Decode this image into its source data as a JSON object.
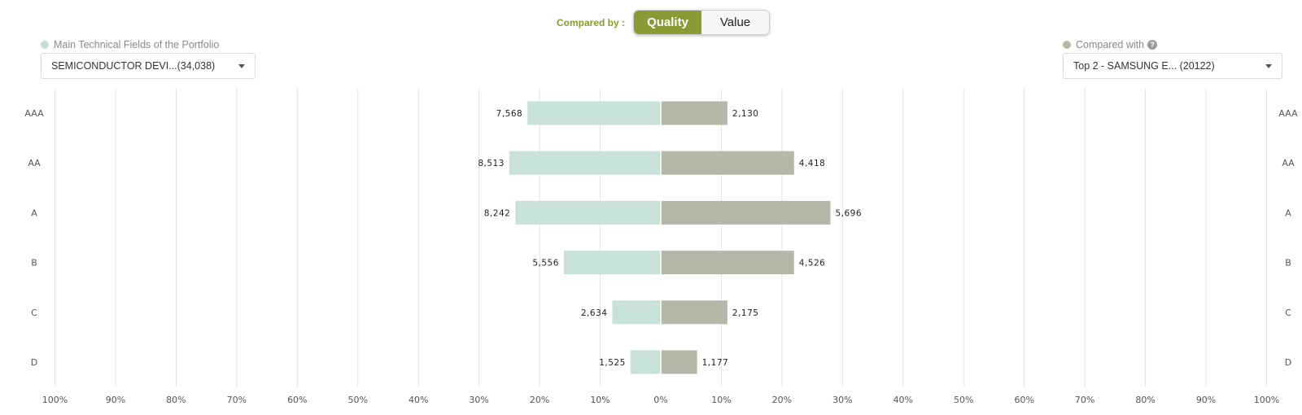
{
  "header": {
    "compared_by_label": "Compared by :",
    "toggle": [
      {
        "label": "Quality",
        "active": true
      },
      {
        "label": "Value",
        "active": false
      }
    ]
  },
  "left_panel": {
    "label": "Main Technical Fields of the Portfolio",
    "dot_color": "#c5e0d6",
    "select_value": "SEMICONDUCTOR DEVI...(34,038)"
  },
  "right_panel": {
    "label": "Compared with",
    "dot_color": "#b5b8a8",
    "select_value": "Top 2 - SAMSUNG E... (20122)"
  },
  "colors": {
    "left_bar": "#c8e2d7",
    "right_bar": "#b5b8a8",
    "accent": "#8a9a35",
    "grid": "#e3e3e3"
  },
  "chart_data": {
    "type": "bar",
    "orientation": "horizontal-diverging",
    "categories": [
      "AAA",
      "AA",
      "A",
      "B",
      "C",
      "D"
    ],
    "series": [
      {
        "side": "left",
        "labels": [
          "7,568",
          "8,513",
          "8,242",
          "5,556",
          "2,634",
          "1,525"
        ],
        "percent": [
          22,
          25,
          24,
          16,
          8,
          5
        ]
      },
      {
        "side": "right",
        "labels": [
          "2,130",
          "4,418",
          "5,696",
          "4,526",
          "2,175",
          "1,177"
        ],
        "percent": [
          11,
          22,
          28,
          22,
          11,
          6
        ]
      }
    ],
    "x_ticks": [
      "100%",
      "90%",
      "80%",
      "70%",
      "60%",
      "50%",
      "40%",
      "30%",
      "20%",
      "10%",
      "0%",
      "10%",
      "20%",
      "30%",
      "40%",
      "50%",
      "60%",
      "70%",
      "80%",
      "90%",
      "100%"
    ],
    "xlim": [
      -100,
      100
    ],
    "grid": true
  }
}
